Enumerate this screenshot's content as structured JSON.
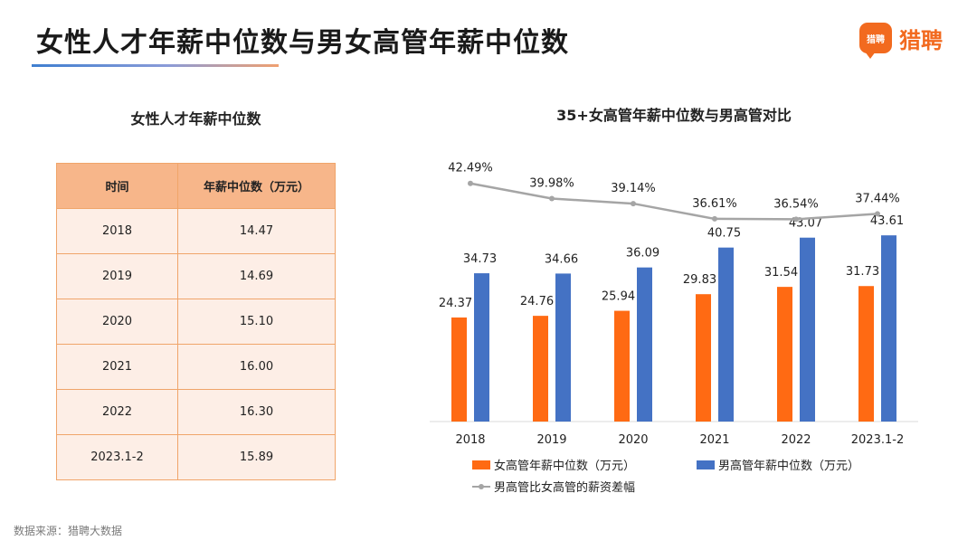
{
  "header": {
    "title": "女性人才年薪中位数与男女高管年薪中位数",
    "logo_badge": "猎聘",
    "logo_text": "猎聘"
  },
  "table": {
    "title": "女性人才年薪中位数",
    "headers": [
      "时间",
      "年薪中位数（万元）"
    ],
    "rows": [
      [
        "2018",
        "14.47"
      ],
      [
        "2019",
        "14.69"
      ],
      [
        "2020",
        "15.10"
      ],
      [
        "2021",
        "16.00"
      ],
      [
        "2022",
        "16.30"
      ],
      [
        "2023.1-2",
        "15.89"
      ]
    ]
  },
  "chart_data": {
    "type": "bar",
    "title": "35+女高管年薪中位数与男高管对比",
    "categories": [
      "2018",
      "2019",
      "2020",
      "2021",
      "2022",
      "2023.1-2"
    ],
    "series": [
      {
        "name": "女高管年薪中位数（万元）",
        "type": "bar",
        "color": "#ff6a13",
        "values": [
          24.37,
          24.76,
          25.94,
          29.83,
          31.54,
          31.73
        ]
      },
      {
        "name": "男高管年薪中位数（万元）",
        "type": "bar",
        "color": "#4472c4",
        "values": [
          34.73,
          34.66,
          36.09,
          40.75,
          43.07,
          43.61
        ]
      },
      {
        "name": "男高管比女高管的薪资差幅",
        "type": "line",
        "color": "#a5a5a5",
        "values": [
          42.49,
          39.98,
          39.14,
          36.61,
          36.54,
          37.44
        ],
        "labels": [
          "42.49%",
          "39.98%",
          "39.14%",
          "36.61%",
          "36.54%",
          "37.44%"
        ]
      }
    ],
    "bar_ylim": [
      0,
      50
    ],
    "line_ylim": [
      30,
      45
    ],
    "xlabel": "",
    "ylabel": "",
    "grid": false,
    "legend": "bottom"
  },
  "footer": {
    "source": "数据来源：猎聘大数据"
  }
}
